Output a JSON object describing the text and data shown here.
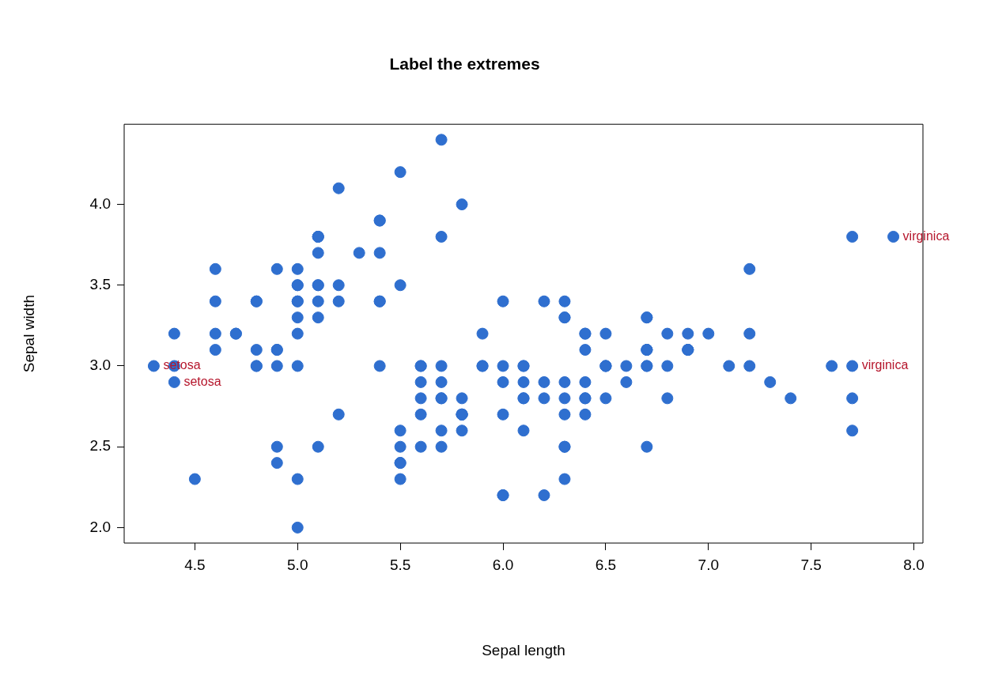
{
  "chart_data": {
    "type": "scatter",
    "title": "Label the extremes",
    "xlabel": "Sepal length",
    "ylabel": "Sepal width",
    "marker": "circle",
    "xlim": [
      4.156,
      8.044
    ],
    "ylim": [
      1.904,
      4.496
    ],
    "xticks": [
      {
        "value": 4.5,
        "label": "4.5"
      },
      {
        "value": 5,
        "label": "5.0"
      },
      {
        "value": 5.5,
        "label": "5.5"
      },
      {
        "value": 6,
        "label": "6.0"
      },
      {
        "value": 6.5,
        "label": "6.5"
      },
      {
        "value": 7,
        "label": "7.0"
      },
      {
        "value": 7.5,
        "label": "7.5"
      },
      {
        "value": 8,
        "label": "8.0"
      }
    ],
    "yticks": [
      {
        "value": 2,
        "label": "2.0"
      },
      {
        "value": 2.5,
        "label": "2.5"
      },
      {
        "value": 3,
        "label": "3.0"
      },
      {
        "value": 3.5,
        "label": "3.5"
      },
      {
        "value": 4,
        "label": "4.0"
      }
    ],
    "annotations": [
      {
        "text": "setosa",
        "x": 4.3,
        "y": 3.0
      },
      {
        "text": "setosa",
        "x": 4.4,
        "y": 2.9
      },
      {
        "text": "virginica",
        "x": 7.9,
        "y": 3.8
      },
      {
        "text": "virginica",
        "x": 7.7,
        "y": 3.0
      }
    ],
    "series": [
      {
        "color": "#2f6fcf",
        "x": [
          5.1,
          4.9,
          4.7,
          4.6,
          5.0,
          5.4,
          4.6,
          5.0,
          4.4,
          4.9,
          5.4,
          4.8,
          4.8,
          4.3,
          5.8,
          5.7,
          5.4,
          5.1,
          5.7,
          5.1,
          5.4,
          5.1,
          4.6,
          5.1,
          4.8,
          5.0,
          5.0,
          5.2,
          5.2,
          4.7,
          4.8,
          5.4,
          5.2,
          5.5,
          4.9,
          5.0,
          5.5,
          4.9,
          4.4,
          5.1,
          5.0,
          4.5,
          4.4,
          5.0,
          5.1,
          4.8,
          5.1,
          4.6,
          5.3,
          5.0,
          7.0,
          6.4,
          6.9,
          5.5,
          6.5,
          5.7,
          6.3,
          4.9,
          6.6,
          5.2,
          5.0,
          5.9,
          6.0,
          6.1,
          5.6,
          6.7,
          5.6,
          5.8,
          6.2,
          5.6,
          5.9,
          6.1,
          6.3,
          6.1,
          6.4,
          6.6,
          6.8,
          6.7,
          6.0,
          5.7,
          5.5,
          5.5,
          5.8,
          6.0,
          5.4,
          6.0,
          6.7,
          6.3,
          5.6,
          5.5,
          5.5,
          6.1,
          5.8,
          5.0,
          5.6,
          5.7,
          5.7,
          6.2,
          5.1,
          5.7,
          6.3,
          5.8,
          7.1,
          6.3,
          6.5,
          7.6,
          4.9,
          7.3,
          6.7,
          7.2,
          6.5,
          6.4,
          6.8,
          5.7,
          5.8,
          6.4,
          6.5,
          7.7,
          7.7,
          6.0,
          6.9,
          5.6,
          7.7,
          6.3,
          6.7,
          7.2,
          6.2,
          6.1,
          6.4,
          7.2,
          7.4,
          7.9,
          6.4,
          6.3,
          6.1,
          7.7,
          6.3,
          6.4,
          6.0,
          6.9,
          6.7,
          6.9,
          5.8,
          6.8,
          6.7,
          6.7,
          6.3,
          6.5,
          6.2,
          5.9
        ],
        "values": [
          3.5,
          3.0,
          3.2,
          3.1,
          3.6,
          3.9,
          3.4,
          3.4,
          2.9,
          3.1,
          3.7,
          3.4,
          3.0,
          3.0,
          4.0,
          4.4,
          3.9,
          3.5,
          3.8,
          3.8,
          3.4,
          3.7,
          3.6,
          3.3,
          3.4,
          3.0,
          3.4,
          3.5,
          3.4,
          3.2,
          3.1,
          3.4,
          4.1,
          4.2,
          3.1,
          3.2,
          3.5,
          3.6,
          3.0,
          3.4,
          3.5,
          2.3,
          3.2,
          3.5,
          3.8,
          3.0,
          3.8,
          3.2,
          3.7,
          3.3,
          3.2,
          3.2,
          3.1,
          2.3,
          2.8,
          2.8,
          3.3,
          2.4,
          2.9,
          2.7,
          2.0,
          3.0,
          2.2,
          2.9,
          2.9,
          3.1,
          3.0,
          2.7,
          2.2,
          2.5,
          3.2,
          2.8,
          2.5,
          2.8,
          2.9,
          3.0,
          2.8,
          3.0,
          2.9,
          2.6,
          2.4,
          2.4,
          2.7,
          2.7,
          3.0,
          3.4,
          3.1,
          2.3,
          3.0,
          2.5,
          2.6,
          3.0,
          2.6,
          2.3,
          2.7,
          3.0,
          2.9,
          2.9,
          2.5,
          2.8,
          3.3,
          2.7,
          3.0,
          2.9,
          3.0,
          3.0,
          2.5,
          2.9,
          2.5,
          3.6,
          3.2,
          2.7,
          3.0,
          2.5,
          2.8,
          3.2,
          3.0,
          3.8,
          2.6,
          2.2,
          3.2,
          2.8,
          2.8,
          2.7,
          3.3,
          3.2,
          2.8,
          3.0,
          2.8,
          3.0,
          2.8,
          3.8,
          2.8,
          2.8,
          2.6,
          3.0,
          3.4,
          3.1,
          3.0,
          3.1,
          3.1,
          3.1,
          2.7,
          3.2,
          3.3,
          3.0,
          2.5,
          3.0,
          3.4,
          3.0
        ]
      }
    ]
  }
}
